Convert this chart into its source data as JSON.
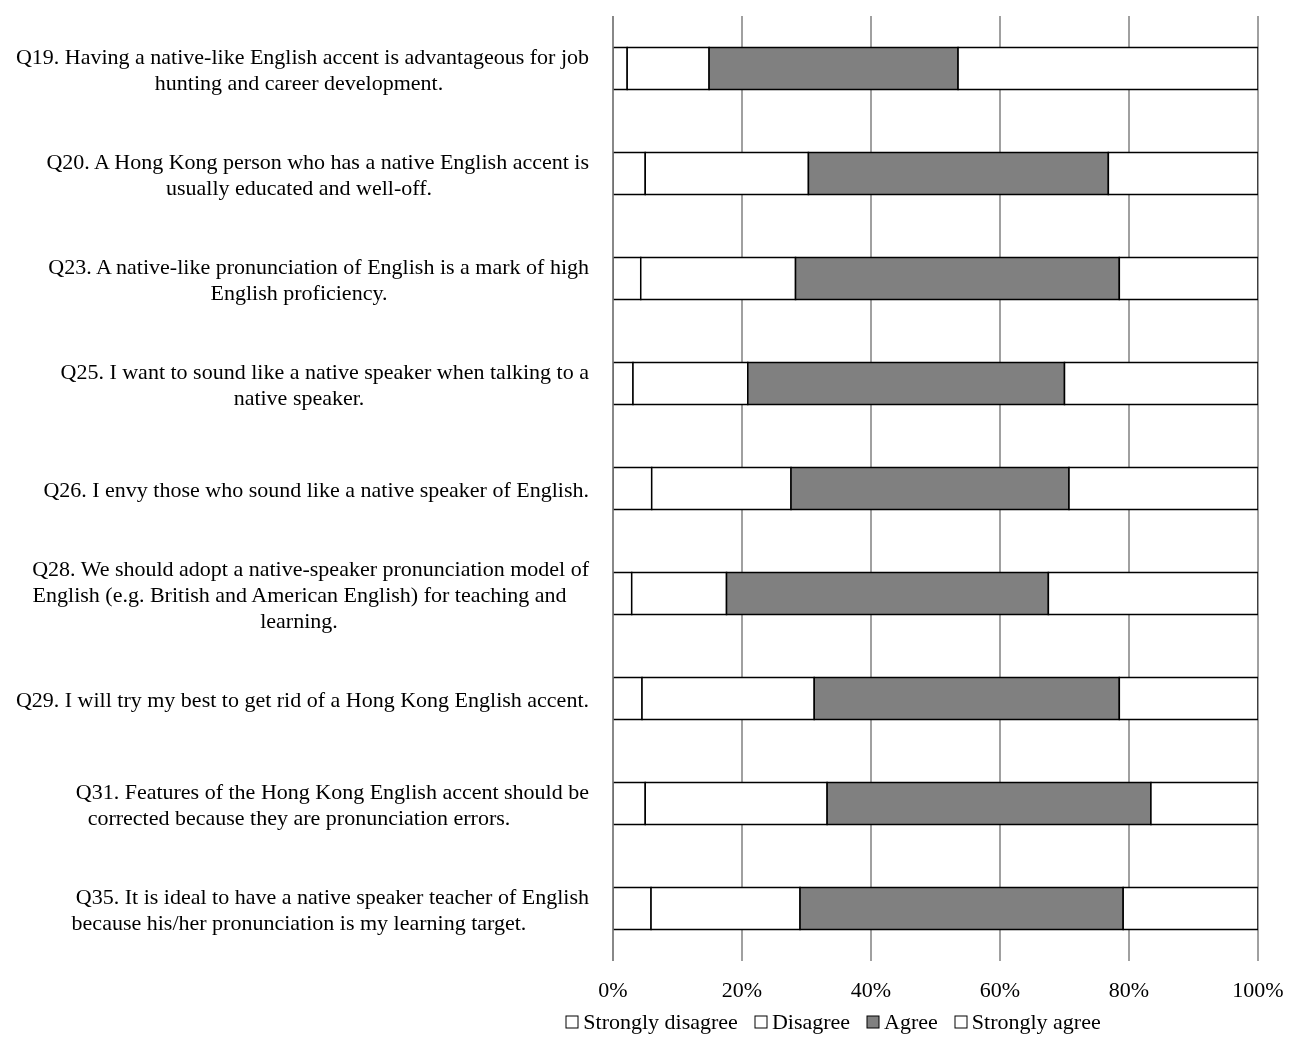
{
  "chart_data": {
    "type": "bar",
    "orientation": "horizontal",
    "stacked": true,
    "categories": [
      "Q19. Having a native-like English accent is advantageous for job hunting and career development.",
      "Q20. A Hong Kong person who has a native English accent is usually educated and well-off.",
      "Q23. A native-like pronunciation of English is a mark of high English proficiency.",
      "Q25. I want to sound like a native speaker when talking to a native speaker.",
      "Q26. I envy those who sound like a native speaker of English.",
      "Q28. We should adopt a native-speaker pronunciation model of English (e.g. British and American English) for teaching and learning.",
      "Q29. I will try my best to get rid of a Hong Kong English accent.",
      "Q31. Features of the Hong Kong English accent should be corrected because they are pronunciation errors.",
      "Q35. It is ideal to have a native speaker teacher of English because his/her pronunciation is my learning target."
    ],
    "series": [
      {
        "name": "Strongly disagree",
        "color": "#ffffff",
        "values": [
          2.2,
          5.0,
          4.3,
          3.1,
          6.0,
          2.9,
          4.5,
          5.0,
          5.9
        ]
      },
      {
        "name": "Disagree",
        "color": "#ffffff",
        "values": [
          12.7,
          25.3,
          24.0,
          17.8,
          21.6,
          14.7,
          26.7,
          28.2,
          23.1
        ]
      },
      {
        "name": "Agree",
        "color": "#808080",
        "values": [
          38.6,
          46.5,
          50.2,
          49.1,
          43.1,
          49.9,
          47.3,
          50.2,
          50.1
        ]
      },
      {
        "name": "Strongly agree",
        "color": "#ffffff",
        "values": [
          46.5,
          23.2,
          21.5,
          30.0,
          29.3,
          32.5,
          21.5,
          16.6,
          20.9
        ]
      }
    ],
    "xlim": [
      0,
      100
    ],
    "xticks": [
      {
        "value": 0,
        "label": "0%"
      },
      {
        "value": 20,
        "label": "20%"
      },
      {
        "value": 40,
        "label": "40%"
      },
      {
        "value": 60,
        "label": "60%"
      },
      {
        "value": 80,
        "label": "80%"
      },
      {
        "value": 100,
        "label": "100%"
      }
    ],
    "grid": "x",
    "legend": "bottom"
  }
}
